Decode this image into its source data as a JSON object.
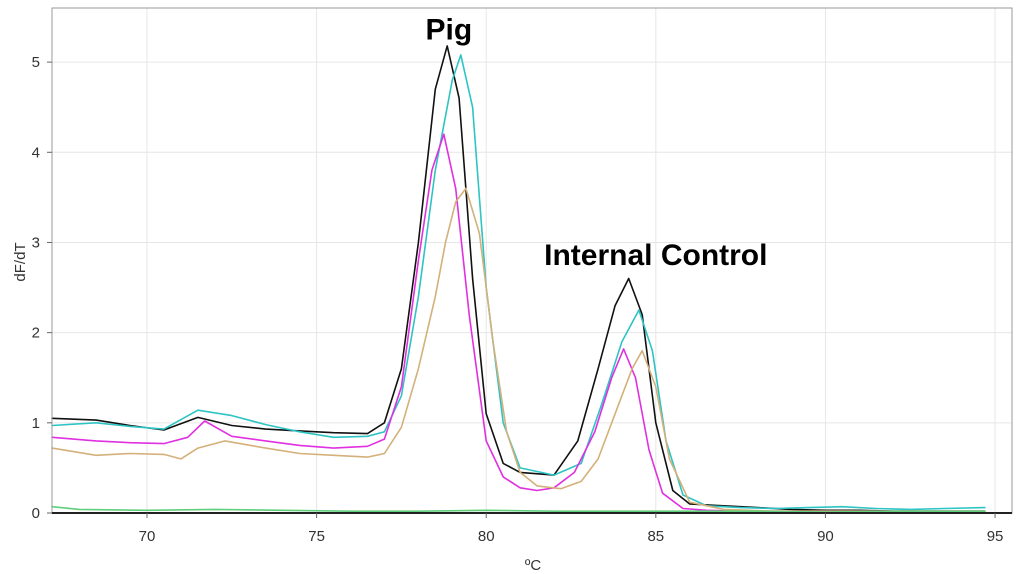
{
  "chart_data": {
    "type": "line",
    "title": "",
    "xlabel": "ºC",
    "ylabel": "dF/dT",
    "xlim": [
      67.2,
      95.5
    ],
    "ylim": [
      0,
      5.6
    ],
    "x_ticks": [
      70,
      75,
      80,
      85,
      90,
      95
    ],
    "y_ticks": [
      0,
      1,
      2,
      3,
      4,
      5
    ],
    "grid": true,
    "legend": "none",
    "annotations": [
      {
        "text": "Pig",
        "x": 78.9,
        "y": 5.25
      },
      {
        "text": "Internal Control",
        "x": 85.0,
        "y": 2.75
      }
    ],
    "series": [
      {
        "color": "#111111",
        "x": [
          67.2,
          68.5,
          69.5,
          70.5,
          71.5,
          72.5,
          73.5,
          74.5,
          75.5,
          76.5,
          77.0,
          77.5,
          78.0,
          78.5,
          78.85,
          79.2,
          79.6,
          80.0,
          80.5,
          81.0,
          82.0,
          82.7,
          83.3,
          83.8,
          84.2,
          84.6,
          85.0,
          85.5,
          86.0,
          87.0,
          88.0,
          89.0,
          90.0,
          91.0,
          92.0,
          93.0,
          94.0,
          94.7
        ],
        "y": [
          1.05,
          1.03,
          0.97,
          0.92,
          1.06,
          0.97,
          0.93,
          0.91,
          0.89,
          0.88,
          1.0,
          1.6,
          3.0,
          4.7,
          5.18,
          4.6,
          2.6,
          1.1,
          0.55,
          0.45,
          0.42,
          0.8,
          1.6,
          2.3,
          2.6,
          2.2,
          1.0,
          0.25,
          0.1,
          0.08,
          0.06,
          0.04,
          0.03,
          0.03,
          0.02,
          0.02,
          0.02,
          0.02
        ]
      },
      {
        "color": "#2ec4c4",
        "x": [
          67.2,
          68.5,
          69.5,
          70.5,
          71.5,
          72.5,
          73.5,
          74.5,
          75.5,
          76.5,
          77.0,
          77.5,
          78.0,
          78.5,
          79.0,
          79.25,
          79.6,
          80.0,
          80.5,
          81.0,
          82.0,
          82.8,
          83.4,
          84.0,
          84.5,
          84.9,
          85.3,
          85.8,
          86.5,
          87.5,
          88.5,
          89.5,
          90.5,
          91.5,
          92.5,
          93.5,
          94.7
        ],
        "y": [
          0.97,
          1.0,
          0.96,
          0.93,
          1.14,
          1.08,
          0.98,
          0.9,
          0.84,
          0.85,
          0.9,
          1.3,
          2.4,
          3.8,
          4.8,
          5.08,
          4.5,
          2.5,
          1.0,
          0.5,
          0.42,
          0.55,
          1.2,
          1.9,
          2.25,
          1.8,
          0.8,
          0.2,
          0.08,
          0.06,
          0.05,
          0.06,
          0.07,
          0.05,
          0.04,
          0.05,
          0.06
        ]
      },
      {
        "color": "#e030e0",
        "x": [
          67.2,
          68.5,
          69.5,
          70.5,
          71.2,
          71.7,
          72.5,
          73.5,
          74.5,
          75.5,
          76.5,
          77.0,
          77.5,
          78.0,
          78.4,
          78.75,
          79.1,
          79.5,
          80.0,
          80.5,
          81.0,
          81.5,
          82.0,
          82.6,
          83.2,
          83.7,
          84.05,
          84.4,
          84.8,
          85.2,
          85.8,
          86.5,
          87.5,
          88.5,
          90.0,
          92.0,
          94.0,
          94.7
        ],
        "y": [
          0.84,
          0.8,
          0.78,
          0.77,
          0.84,
          1.02,
          0.85,
          0.8,
          0.75,
          0.72,
          0.74,
          0.82,
          1.4,
          2.8,
          3.8,
          4.2,
          3.6,
          2.2,
          0.8,
          0.4,
          0.28,
          0.25,
          0.28,
          0.45,
          0.9,
          1.5,
          1.82,
          1.5,
          0.7,
          0.22,
          0.05,
          0.03,
          0.02,
          0.02,
          0.02,
          0.02,
          0.02,
          0.02
        ]
      },
      {
        "color": "#d4b07a",
        "x": [
          67.2,
          68.5,
          69.5,
          70.5,
          71.0,
          71.5,
          72.3,
          73.5,
          74.5,
          75.5,
          76.5,
          77.0,
          77.5,
          78.0,
          78.5,
          78.8,
          79.1,
          79.4,
          79.8,
          80.2,
          80.6,
          81.0,
          81.5,
          82.2,
          82.8,
          83.3,
          83.8,
          84.3,
          84.6,
          85.0,
          85.4,
          86.0,
          87.0,
          88.5,
          90.0,
          92.0,
          94.0,
          94.7
        ],
        "y": [
          0.72,
          0.64,
          0.66,
          0.65,
          0.6,
          0.72,
          0.8,
          0.72,
          0.66,
          0.64,
          0.62,
          0.66,
          0.95,
          1.6,
          2.4,
          3.0,
          3.45,
          3.6,
          3.1,
          1.9,
          0.9,
          0.45,
          0.3,
          0.27,
          0.35,
          0.6,
          1.1,
          1.6,
          1.8,
          1.4,
          0.6,
          0.12,
          0.04,
          0.02,
          0.02,
          0.02,
          0.02,
          0.02
        ]
      },
      {
        "color": "#5fcf7a",
        "x": [
          67.2,
          68.0,
          70.0,
          72.0,
          74.0,
          76.0,
          78.0,
          80.0,
          82.0,
          84.0,
          86.0,
          88.0,
          90.0,
          92.0,
          94.0,
          94.7
        ],
        "y": [
          0.07,
          0.04,
          0.03,
          0.04,
          0.03,
          0.02,
          0.02,
          0.03,
          0.02,
          0.02,
          0.02,
          0.02,
          0.01,
          0.02,
          0.02,
          0.02
        ]
      },
      {
        "color": "#1a2a8a",
        "x": [
          67.2,
          70.0,
          75.0,
          80.0,
          85.0,
          90.0,
          94.7
        ],
        "y": [
          0.0,
          0.0,
          0.0,
          0.0,
          0.0,
          0.0,
          0.0
        ]
      }
    ]
  }
}
